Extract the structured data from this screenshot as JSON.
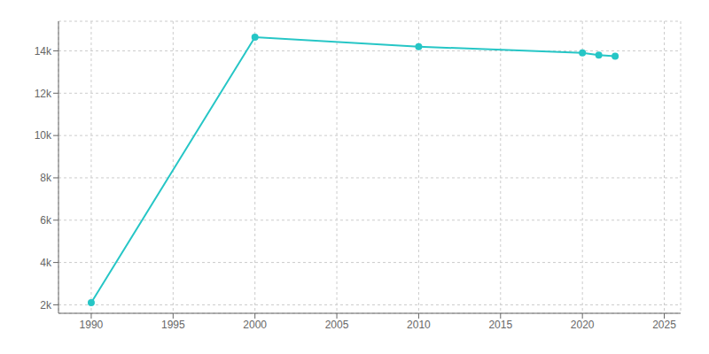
{
  "chart_data": {
    "type": "line",
    "x": [
      1990,
      2000,
      2010,
      2020,
      2021,
      2022
    ],
    "values": [
      2100,
      14650,
      14200,
      13900,
      13800,
      13750
    ],
    "color": "#26C6C6",
    "marker": "circle",
    "xlim": [
      1988,
      2026
    ],
    "xticks": [
      1990,
      1995,
      2000,
      2005,
      2010,
      2015,
      2020,
      2025
    ],
    "ylim": [
      1600,
      15400
    ],
    "yticks": [
      {
        "value": 2000,
        "label": "2k"
      },
      {
        "value": 4000,
        "label": "4k"
      },
      {
        "value": 6000,
        "label": "6k"
      },
      {
        "value": 8000,
        "label": "8k"
      },
      {
        "value": 10000,
        "label": "10k"
      },
      {
        "value": 12000,
        "label": "12k"
      },
      {
        "value": 14000,
        "label": "14k"
      }
    ],
    "grid": true
  }
}
